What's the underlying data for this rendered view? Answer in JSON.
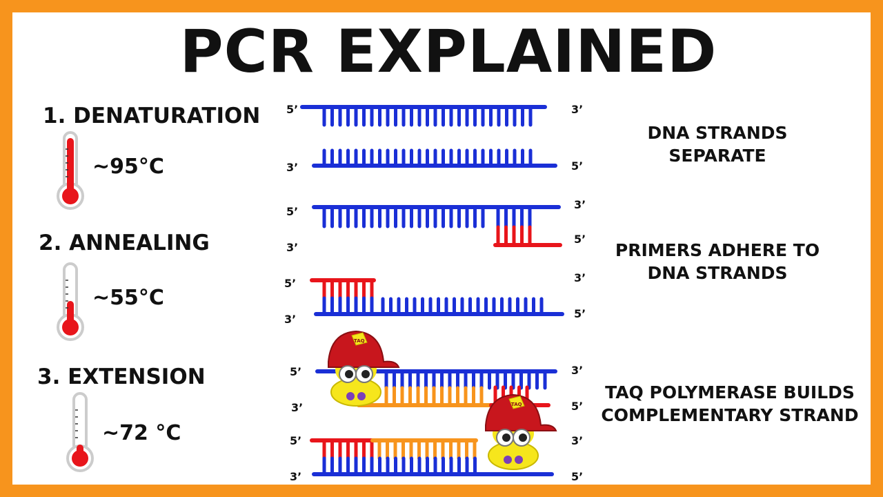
{
  "title": "PCR EXPLAINED",
  "steps": [
    {
      "label": "1. DENATURATION",
      "temperature": "~95°C",
      "description": [
        "DNA STRANDS",
        "SEPARATE"
      ]
    },
    {
      "label": "2. ANNEALING",
      "temperature": "~55°C",
      "description": [
        "PRIMERS ADHERE TO",
        "DNA STRANDS"
      ]
    },
    {
      "label": "3. EXTENSION",
      "temperature": "~72 °C",
      "description": [
        "TAQ POLYMERASE BUILDS",
        "COMPLEMENTARY STRAND"
      ]
    }
  ],
  "polymerase_hat_text": "TAQ",
  "end_labels": {
    "five_prime": "5’",
    "three_prime": "3’"
  },
  "colors": {
    "frame": "#f7941d",
    "template_strand": "#1a2fd6",
    "primer": "#e8151b",
    "new_strand": "#f7941d",
    "thermometer_fill": "#e8151b"
  }
}
